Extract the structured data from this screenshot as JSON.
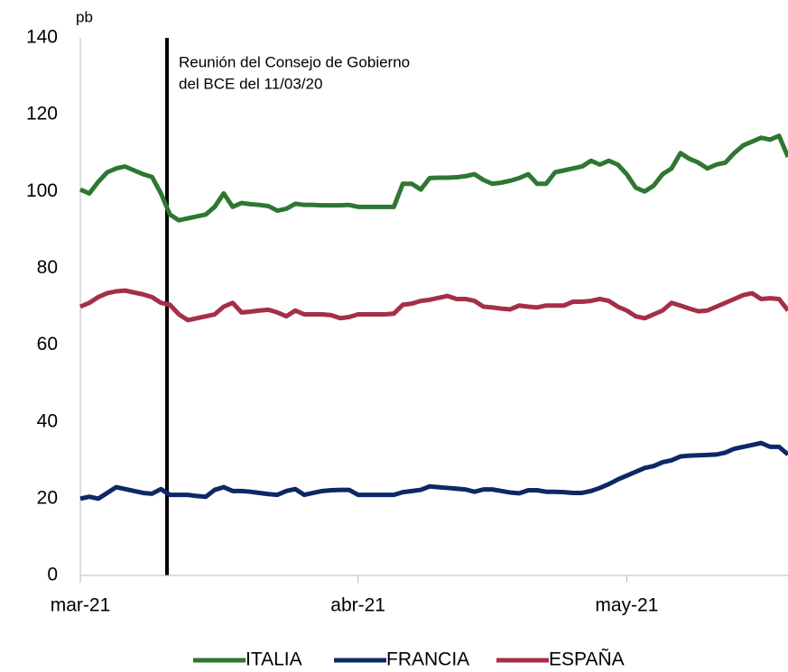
{
  "chart_data": {
    "type": "line",
    "y_label": "pb",
    "annotation": [
      "Reunión del Consejo de Gobierno",
      "del BCE del 11/03/20"
    ],
    "categories": [
      "mar-21",
      null,
      null,
      null,
      null,
      null,
      null,
      null,
      null,
      null,
      null,
      null,
      null,
      null,
      null,
      null,
      null,
      null,
      null,
      null,
      null,
      null,
      null,
      null,
      null,
      null,
      null,
      null,
      null,
      null,
      null,
      "abr-21",
      null,
      null,
      null,
      null,
      null,
      null,
      null,
      null,
      null,
      null,
      null,
      null,
      null,
      null,
      null,
      null,
      null,
      null,
      null,
      null,
      null,
      null,
      null,
      null,
      null,
      null,
      null,
      null,
      null,
      "may-21",
      null,
      null,
      null,
      null,
      null,
      null,
      null,
      null,
      null,
      null,
      null,
      null,
      null,
      null,
      null,
      null,
      null,
      null
    ],
    "series": [
      {
        "name": "ITALIA",
        "color": "#2e7732",
        "values": [
          100.5,
          99.5,
          102.5,
          105,
          106,
          106.5,
          105.5,
          104.5,
          103.8,
          99.5,
          94,
          92.5,
          93,
          93.5,
          94,
          96,
          99.5,
          96,
          97,
          96.7,
          96.5,
          96.2,
          95,
          95.5,
          96.8,
          96.5,
          96.5,
          96.4,
          96.4,
          96.4,
          96.5,
          96,
          96,
          96,
          96,
          96,
          102,
          102,
          100.5,
          103.5,
          103.6,
          103.6,
          103.7,
          104,
          104.5,
          103,
          102,
          102.3,
          102.8,
          103.5,
          104.5,
          102,
          102,
          105,
          105.5,
          106,
          106.5,
          108,
          107,
          108,
          107,
          104.5,
          101,
          100,
          101.5,
          104.5,
          106,
          110,
          108.5,
          107.5,
          106,
          107,
          107.5,
          110,
          112,
          113,
          114,
          113.5,
          114.5,
          109
        ]
      },
      {
        "name": "FRANCIA",
        "color": "#0d2866",
        "values": [
          20,
          20.5,
          20,
          21.5,
          23,
          22.5,
          22,
          21.5,
          21.3,
          22.5,
          21,
          21,
          21,
          20.7,
          20.5,
          22.3,
          23,
          22,
          22,
          21.8,
          21.5,
          21.2,
          21,
          22,
          22.5,
          21,
          21.5,
          22,
          22.2,
          22.3,
          22.3,
          21,
          21,
          21,
          21,
          21,
          21.7,
          22,
          22.3,
          23.2,
          23,
          22.8,
          22.6,
          22.4,
          21.8,
          22.4,
          22.4,
          22,
          21.6,
          21.4,
          22.2,
          22.2,
          21.8,
          21.8,
          21.7,
          21.5,
          21.5,
          22,
          22.8,
          23.8,
          25,
          26,
          27,
          28,
          28.5,
          29.5,
          30,
          31,
          31.2,
          31.3,
          31.4,
          31.5,
          32,
          33,
          33.5,
          34,
          34.5,
          33.5,
          33.5,
          31.5
        ]
      },
      {
        "name": "ESPAÑA",
        "color": "#a52f48",
        "values": [
          70,
          71,
          72.5,
          73.5,
          74,
          74.2,
          73.7,
          73.2,
          72.5,
          71,
          70.5,
          68,
          66.5,
          67,
          67.5,
          68,
          70,
          71,
          68.5,
          68.7,
          69,
          69.2,
          68.5,
          67.5,
          69,
          68,
          68,
          68,
          67.8,
          67,
          67.3,
          68,
          68,
          68,
          68,
          68.2,
          70.5,
          70.8,
          71.5,
          71.8,
          72.3,
          72.8,
          72,
          72,
          71.5,
          70,
          69.8,
          69.5,
          69.3,
          70.3,
          70,
          69.8,
          70.3,
          70.3,
          70.3,
          71.3,
          71.3,
          71.5,
          72,
          71.5,
          70,
          69,
          67.5,
          67,
          68,
          69,
          71,
          70.3,
          69.5,
          68.8,
          69,
          70,
          71,
          72,
          73,
          73.5,
          72,
          72.2,
          72,
          69
        ]
      }
    ],
    "ylim": [
      0,
      140
    ],
    "yticks": [
      0,
      20,
      40,
      60,
      80,
      100,
      120,
      140
    ],
    "grid": false,
    "legend": "bottom"
  }
}
